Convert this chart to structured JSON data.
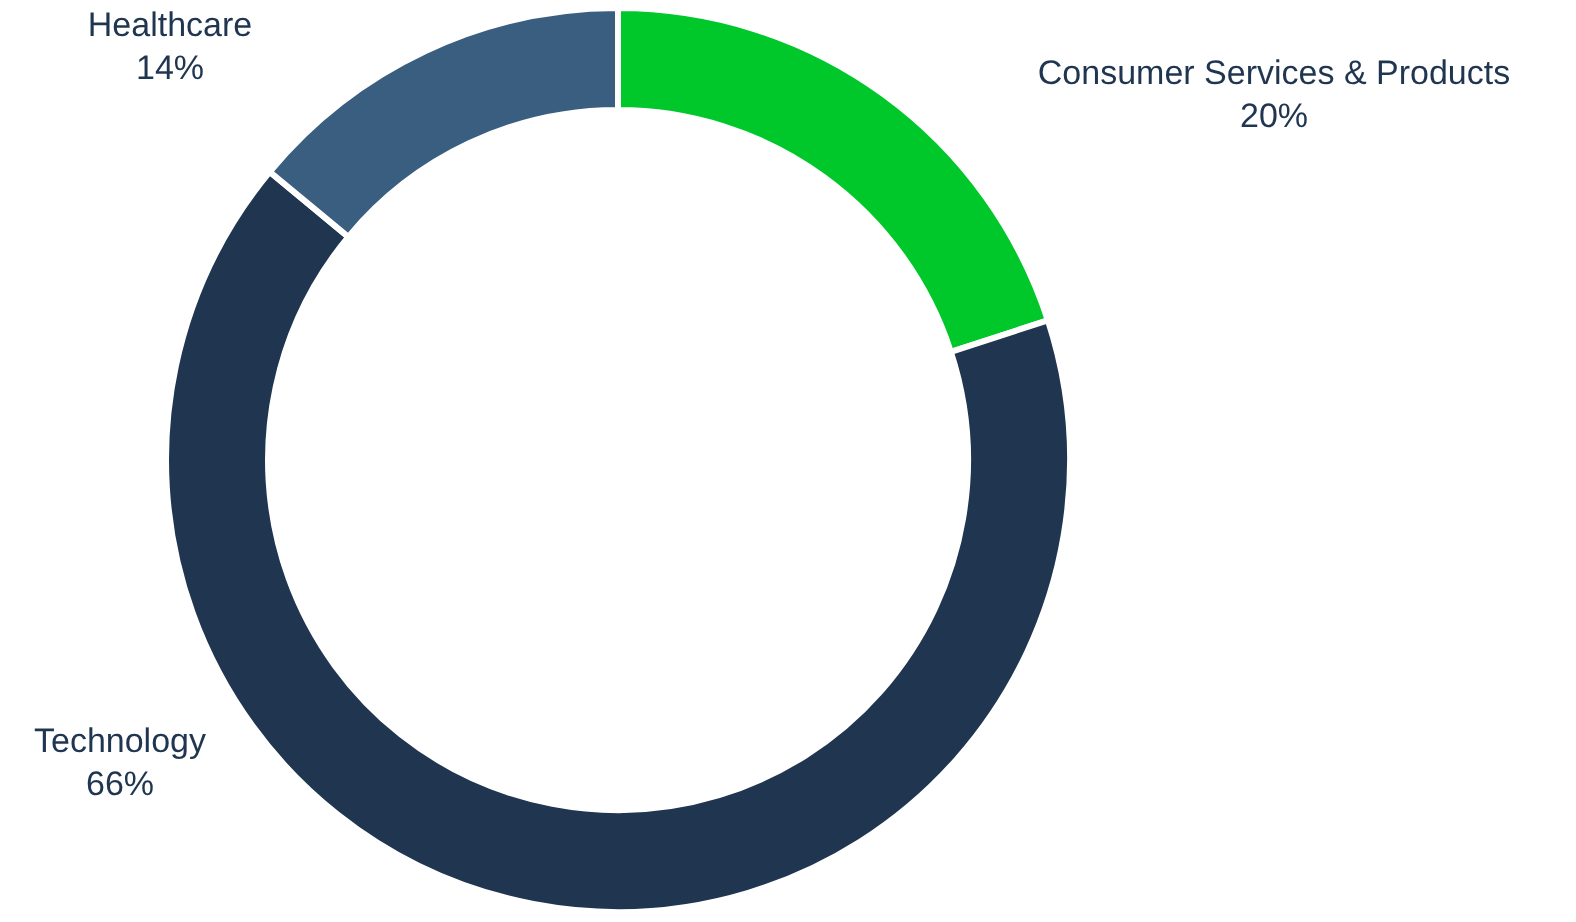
{
  "chart_data": {
    "type": "donut",
    "categories": [
      "Consumer Services & Products",
      "Technology",
      "Healthcare"
    ],
    "values": [
      20,
      66,
      14
    ],
    "value_labels": [
      "20%",
      "66%",
      "14%"
    ],
    "colors": [
      "#00c82a",
      "#1f3550",
      "#3a5e80"
    ],
    "legend": false
  }
}
